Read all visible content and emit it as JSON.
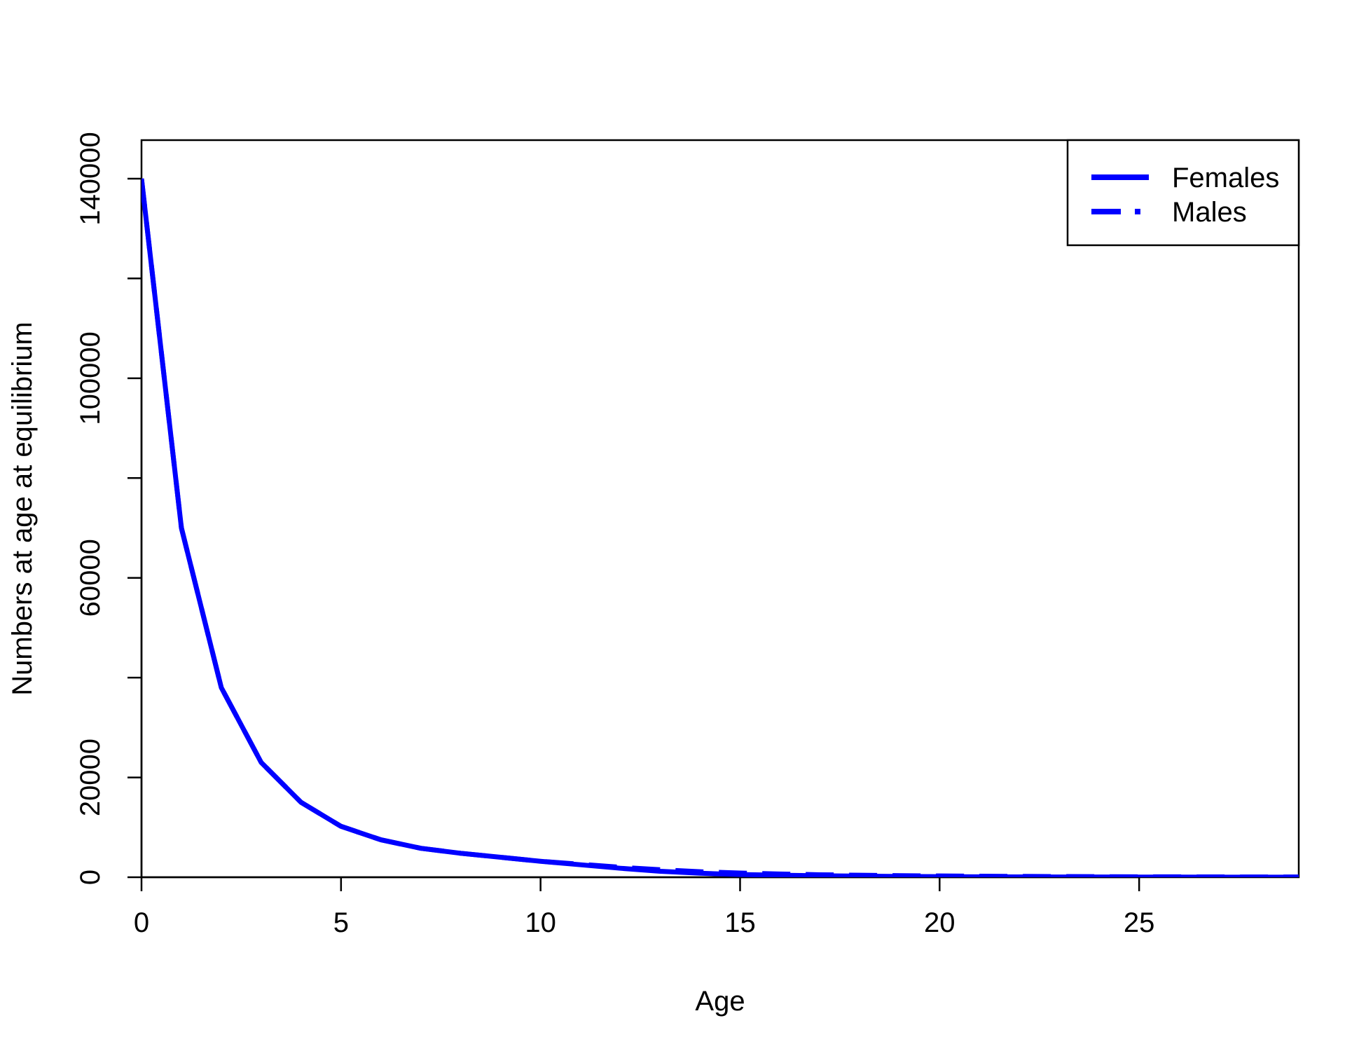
{
  "chart_data": {
    "type": "line",
    "xlabel": "Age",
    "ylabel": "Numbers at age at equilibrium",
    "xlim": [
      0,
      29
    ],
    "ylim": [
      0,
      140000
    ],
    "x_ticks": [
      0,
      5,
      10,
      15,
      20,
      25
    ],
    "y_ticks": [
      0,
      20000,
      40000,
      60000,
      80000,
      100000,
      120000,
      140000
    ],
    "y_tick_labels_shown": [
      "0",
      "20000",
      "60000",
      "100000",
      "140000"
    ],
    "grid": false,
    "legend": {
      "position": "top-right"
    },
    "color": "#0000ff",
    "x": [
      0,
      1,
      2,
      3,
      4,
      5,
      6,
      7,
      8,
      9,
      10,
      11,
      12,
      13,
      14,
      15,
      16,
      17,
      18,
      19,
      20,
      21,
      22,
      23,
      24,
      25,
      26,
      27,
      28,
      29
    ],
    "series": [
      {
        "name": "Females",
        "line_style": "solid",
        "values": [
          140000,
          70000,
          38000,
          23000,
          15000,
          10200,
          7500,
          5800,
          4800,
          4000,
          3200,
          2500,
          1800,
          1200,
          800,
          550,
          400,
          300,
          220,
          160,
          120,
          90,
          70,
          55,
          45,
          35,
          28,
          22,
          18,
          15
        ]
      },
      {
        "name": "Males",
        "line_style": "dashed",
        "values": [
          140000,
          70000,
          38000,
          23000,
          15000,
          10200,
          7500,
          5800,
          4800,
          4000,
          3200,
          2600,
          2000,
          1500,
          1100,
          850,
          650,
          500,
          400,
          320,
          260,
          210,
          170,
          140,
          115,
          95,
          80,
          65,
          55,
          45
        ]
      }
    ]
  }
}
